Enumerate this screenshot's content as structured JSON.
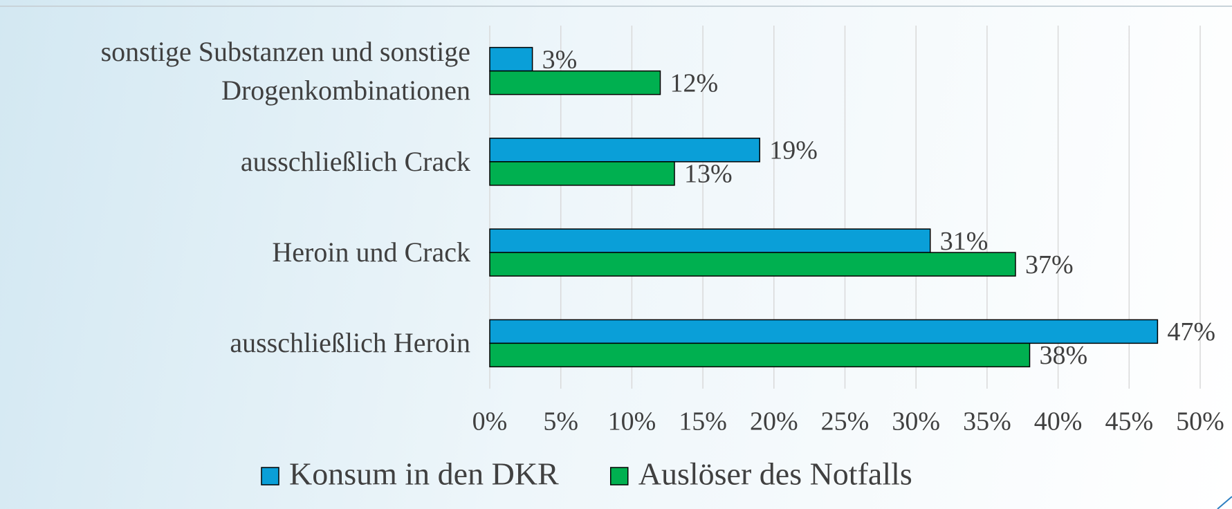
{
  "chart_data": {
    "type": "barh",
    "categories": [
      "sonstige Substanzen und sonstige Drogenkombinationen",
      "ausschließlich Crack",
      "Heroin und Crack",
      "ausschließlich Heroin"
    ],
    "series": [
      {
        "name": "Konsum in den DKR",
        "color": "#0a9fd8",
        "values": [
          3,
          19,
          31,
          47
        ],
        "value_labels": [
          "3%",
          "19%",
          "31%",
          "47%"
        ]
      },
      {
        "name": "Auslöser des Notfalls",
        "color": "#00b050",
        "values": [
          12,
          13,
          37,
          38
        ],
        "value_labels": [
          "12%",
          "13%",
          "37%",
          "38%"
        ]
      }
    ],
    "xlim": [
      0,
      50
    ],
    "xticks": [
      {
        "value": 0,
        "label": "0%"
      },
      {
        "value": 5,
        "label": "5%"
      },
      {
        "value": 10,
        "label": "10%"
      },
      {
        "value": 15,
        "label": "15%"
      },
      {
        "value": 20,
        "label": "20%"
      },
      {
        "value": 25,
        "label": "25%"
      },
      {
        "value": 30,
        "label": "30%"
      },
      {
        "value": 35,
        "label": "35%"
      },
      {
        "value": 40,
        "label": "40%"
      },
      {
        "value": 45,
        "label": "45%"
      },
      {
        "value": 50,
        "label": "50%"
      }
    ],
    "grid": true,
    "legend": "bottom"
  }
}
